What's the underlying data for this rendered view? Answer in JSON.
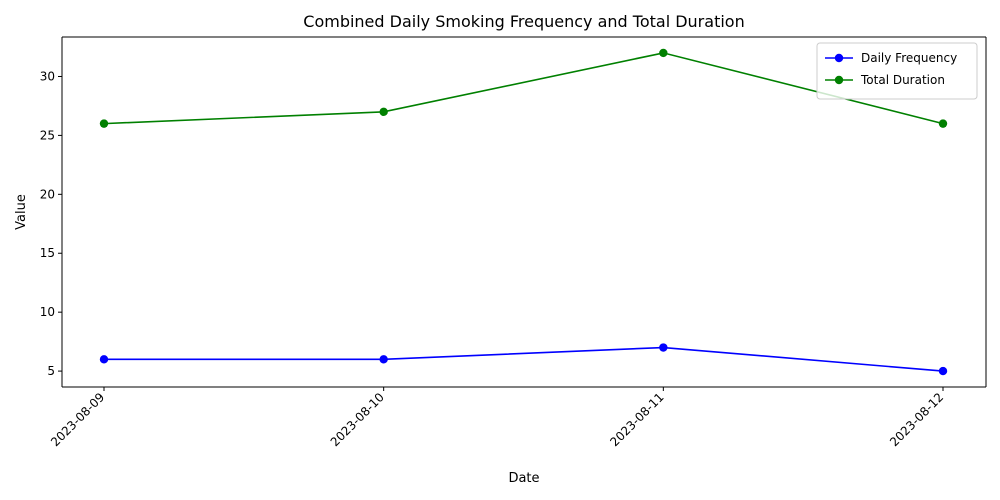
{
  "chart_data": {
    "type": "line",
    "title": "Combined Daily Smoking Frequency and Total Duration",
    "xlabel": "Date",
    "ylabel": "Value",
    "categories": [
      "2023-08-09",
      "2023-08-10",
      "2023-08-11",
      "2023-08-12"
    ],
    "yticks": [
      5,
      10,
      15,
      20,
      25,
      30
    ],
    "ylim": [
      3.65,
      33.35
    ],
    "grid": false,
    "legend_position": "top-right",
    "series": [
      {
        "name": "Daily Frequency",
        "color": "#0000ff",
        "marker": "circle",
        "values": [
          6,
          6,
          7,
          5
        ]
      },
      {
        "name": "Total Duration",
        "color": "#008000",
        "marker": "circle",
        "values": [
          26,
          27,
          32,
          26
        ]
      }
    ]
  }
}
